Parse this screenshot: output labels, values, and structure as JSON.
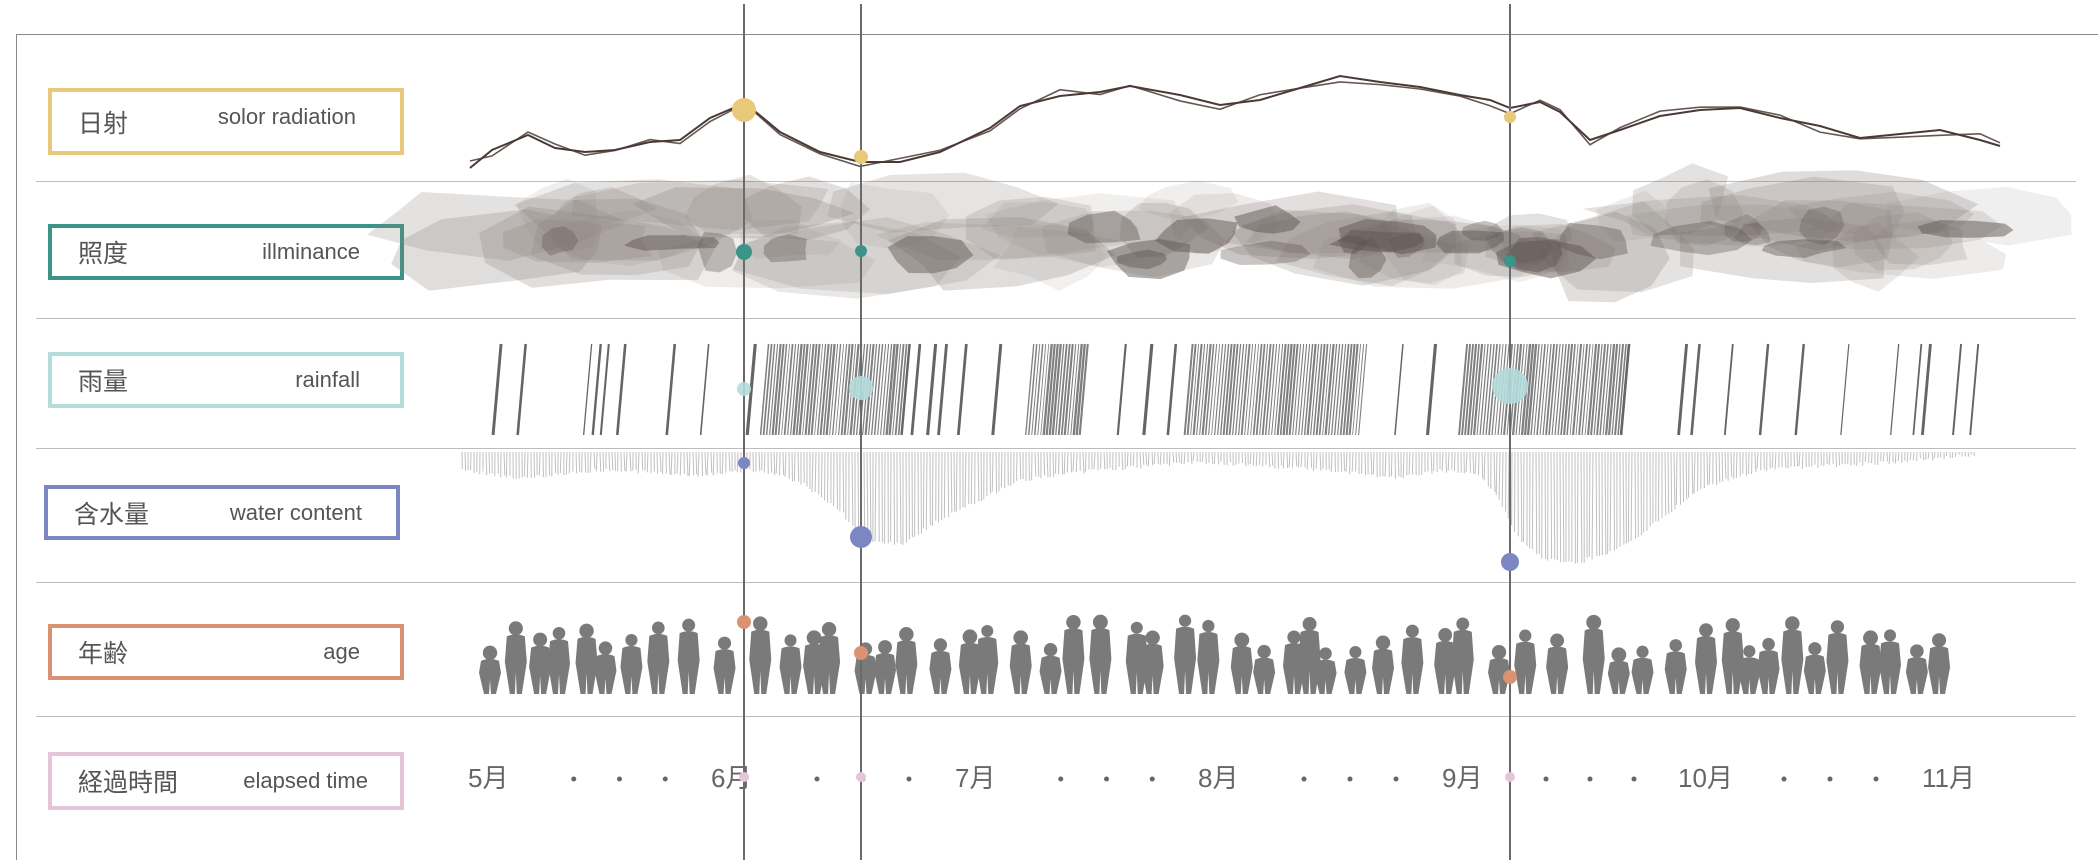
{
  "rows": [
    {
      "key": "radiation",
      "jp": "日射",
      "en": "solor radiation",
      "color": "#e8c97a"
    },
    {
      "key": "illuminance",
      "jp": "照度",
      "en": "illminance",
      "color": "#3a9488"
    },
    {
      "key": "rainfall",
      "jp": "雨量",
      "en": "rainfall",
      "color": "#b3dcda"
    },
    {
      "key": "water",
      "jp": "含水量",
      "en": "water content",
      "color": "#7b86c2"
    },
    {
      "key": "age",
      "jp": "年齢",
      "en": "age",
      "color": "#d99272"
    },
    {
      "key": "time",
      "jp": "経過時間",
      "en": "elapsed time",
      "color": "#e4c6d8"
    }
  ],
  "timeline": {
    "months": [
      "5月",
      "6月",
      "7月",
      "8月",
      "9月",
      "10月",
      "11月"
    ]
  },
  "colors": {
    "marker_line": "#6a6a6a",
    "radiation_line": "#4a3a36",
    "cloud": "#8a807c",
    "rain_line": "#555555",
    "silhouette": "#7a7a7a"
  }
}
